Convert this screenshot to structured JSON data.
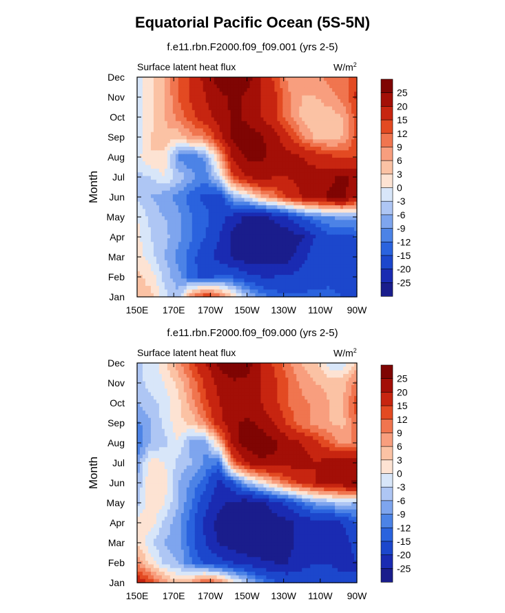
{
  "title": "Equatorial Pacific Ocean (5S-5N)",
  "colors": [
    "#1a1d8c",
    "#1a2bb2",
    "#1c47cc",
    "#2a63de",
    "#4c83e6",
    "#7ea5ee",
    "#aec6f4",
    "#d8e6f9",
    "#fde3d3",
    "#fbc2a4",
    "#f89e7e",
    "#f0754f",
    "#e34a22",
    "#c72510",
    "#a30f07",
    "#7f0503"
  ],
  "colorbar": {
    "labels": [
      "25",
      "20",
      "15",
      "12",
      "9",
      "6",
      "3",
      "0",
      "-3",
      "-6",
      "-9",
      "-12",
      "-15",
      "-20",
      "-25"
    ]
  },
  "chart_data": [
    {
      "type": "heatmap",
      "title": "f.e11.rbn.F2000.f09_f09.001 (yrs 2-5)",
      "left_label": "Surface latent heat flux",
      "units_base": "W/m",
      "units_exp": "2",
      "xlabel": "",
      "ylabel": "Month",
      "xticks": [
        "150E",
        "170E",
        "170W",
        "150W",
        "130W",
        "110W",
        "90W"
      ],
      "yticks": [
        "Jan",
        "Feb",
        "Mar",
        "Apr",
        "May",
        "Jun",
        "Jul",
        "Aug",
        "Sep",
        "Oct",
        "Nov",
        "Dec"
      ],
      "xlim": [
        "150E",
        "90W"
      ],
      "ylim": [
        "Jan",
        "Dec"
      ],
      "contour_levels": [
        -25,
        -20,
        -15,
        -12,
        -9,
        -6,
        -3,
        0,
        3,
        6,
        9,
        12,
        15,
        20,
        25
      ],
      "values_rows_jan_to_dec_cols_150E_to_90W": [
        [
          3,
          4,
          -2,
          -5,
          10,
          16,
          12,
          3,
          -5,
          -10,
          -13,
          -14,
          -14,
          -14,
          -14,
          -15,
          -16
        ],
        [
          4,
          2,
          -4,
          -8,
          -14,
          -16,
          -14,
          -15,
          -18,
          -20,
          -20,
          -19,
          -18,
          -17,
          -16,
          -18,
          -19
        ],
        [
          2,
          -2,
          -6,
          -10,
          -14,
          -18,
          -22,
          -26,
          -28,
          -28,
          -28,
          -27,
          -22,
          -16,
          -15,
          -18,
          -17
        ],
        [
          1,
          -3,
          -5,
          -8,
          -12,
          -15,
          -20,
          -27,
          -29,
          -29,
          -29,
          -28,
          -26,
          -20,
          -16,
          -16,
          -15
        ],
        [
          0,
          -4,
          -6,
          -8,
          -12,
          -14,
          -18,
          -22,
          -26,
          -26,
          -24,
          -20,
          -14,
          -11,
          -9,
          -8,
          -7
        ],
        [
          -4,
          -6,
          -8,
          -10,
          -14,
          -16,
          -18,
          -7,
          -2,
          6,
          10,
          16,
          20,
          22,
          26,
          27,
          20
        ],
        [
          -4,
          -3,
          0,
          -4,
          -8,
          -11,
          -2,
          14,
          20,
          22,
          20,
          20,
          22,
          22,
          24,
          26,
          23
        ],
        [
          -1,
          3,
          2,
          -10,
          -12,
          -8,
          6,
          22,
          26,
          26,
          24,
          22,
          20,
          18,
          16,
          14,
          14
        ],
        [
          -3,
          3,
          5,
          4,
          8,
          10,
          18,
          26,
          28,
          26,
          22,
          16,
          10,
          5,
          4,
          6,
          14
        ],
        [
          -2,
          2,
          6,
          10,
          14,
          18,
          22,
          26,
          24,
          20,
          16,
          10,
          5,
          3,
          4,
          6,
          14
        ],
        [
          -2,
          2,
          6,
          12,
          16,
          20,
          24,
          26,
          24,
          20,
          16,
          10,
          6,
          6,
          8,
          10,
          16
        ],
        [
          -1,
          2,
          6,
          12,
          16,
          22,
          28,
          30,
          28,
          20,
          14,
          8,
          6,
          8,
          10,
          10,
          14
        ]
      ]
    },
    {
      "type": "heatmap",
      "title": "f.e11.rbn.F2000.f09_f09.000 (yrs 2-5)",
      "left_label": "Surface latent heat flux",
      "units_base": "W/m",
      "units_exp": "2",
      "xlabel": "",
      "ylabel": "Month",
      "xticks": [
        "150E",
        "170E",
        "170W",
        "150W",
        "130W",
        "110W",
        "90W"
      ],
      "yticks": [
        "Jan",
        "Feb",
        "Mar",
        "Apr",
        "May",
        "Jun",
        "Jul",
        "Aug",
        "Sep",
        "Oct",
        "Nov",
        "Dec"
      ],
      "xlim": [
        "150E",
        "90W"
      ],
      "ylim": [
        "Jan",
        "Dec"
      ],
      "contour_levels": [
        -25,
        -20,
        -15,
        -12,
        -9,
        -6,
        -3,
        0,
        3,
        6,
        9,
        12,
        15,
        20,
        25
      ],
      "values_rows_jan_to_dec_cols_150E_to_90W": [
        [
          20,
          14,
          8,
          4,
          8,
          14,
          10,
          2,
          -4,
          -10,
          -14,
          -16,
          -16,
          -16,
          -17,
          -18,
          -20
        ],
        [
          8,
          2,
          -4,
          -6,
          -12,
          -16,
          -18,
          -20,
          -22,
          -24,
          -25,
          -25,
          -22,
          -20,
          -20,
          -22,
          -20
        ],
        [
          3,
          -3,
          -6,
          -8,
          -14,
          -20,
          -26,
          -28,
          -30,
          -30,
          -28,
          -26,
          -24,
          -22,
          -22,
          -22,
          -18
        ],
        [
          1,
          2,
          -4,
          -8,
          -14,
          -22,
          -27,
          -30,
          -30,
          -30,
          -28,
          -26,
          -24,
          -22,
          -22,
          -20,
          -14
        ],
        [
          -4,
          3,
          0,
          -6,
          -12,
          -18,
          -24,
          -26,
          -28,
          -26,
          -22,
          -18,
          -12,
          -8,
          -6,
          -4,
          -6
        ],
        [
          -6,
          3,
          2,
          -6,
          -10,
          -14,
          -22,
          -16,
          -6,
          0,
          6,
          12,
          16,
          20,
          22,
          24,
          26
        ],
        [
          -8,
          2,
          0,
          -4,
          -6,
          -10,
          -12,
          12,
          20,
          24,
          24,
          22,
          22,
          20,
          22,
          24,
          22
        ],
        [
          -12,
          -6,
          -4,
          0,
          -8,
          -8,
          6,
          22,
          28,
          28,
          26,
          22,
          20,
          16,
          12,
          8,
          10
        ],
        [
          -10,
          -6,
          -2,
          2,
          4,
          10,
          18,
          24,
          26,
          24,
          20,
          14,
          10,
          8,
          6,
          5,
          12
        ],
        [
          -6,
          -4,
          -2,
          2,
          8,
          14,
          20,
          24,
          22,
          20,
          16,
          12,
          10,
          8,
          6,
          6,
          14
        ],
        [
          -4,
          -2,
          0,
          4,
          10,
          16,
          22,
          24,
          24,
          20,
          16,
          12,
          8,
          6,
          5,
          5,
          10
        ],
        [
          -4,
          -2,
          2,
          8,
          14,
          20,
          26,
          30,
          28,
          20,
          14,
          10,
          6,
          4,
          -2,
          -2,
          4
        ]
      ]
    }
  ]
}
